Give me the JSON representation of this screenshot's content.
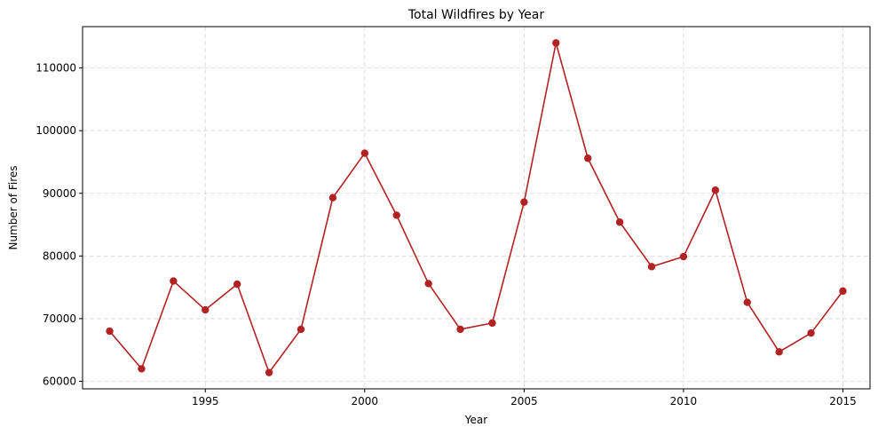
{
  "chart_data": {
    "type": "line",
    "title": "Total Wildfires by Year",
    "xlabel": "Year",
    "ylabel": "Number of Fires",
    "xlim": [
      1991.15,
      2015.85
    ],
    "ylim": [
      58800,
      116600
    ],
    "xticks": [
      1995,
      2000,
      2005,
      2010,
      2015
    ],
    "yticks": [
      60000,
      70000,
      80000,
      90000,
      100000,
      110000
    ],
    "grid": true,
    "legend": "none",
    "series": [
      {
        "x": [
          1992,
          1993,
          1994,
          1995,
          1996,
          1997,
          1998,
          1999,
          2000,
          2001,
          2002,
          2003,
          2004,
          2005,
          2006,
          2007,
          2008,
          2009,
          2010,
          2011,
          2012,
          2013,
          2014,
          2015
        ],
        "values": [
          68000,
          62000,
          76000,
          71400,
          75500,
          61400,
          68300,
          89300,
          96400,
          86500,
          75600,
          68300,
          69300,
          88600,
          114000,
          95600,
          85400,
          78300,
          79900,
          90500,
          72600,
          64700,
          67700,
          74400
        ],
        "color": "#b22222"
      }
    ]
  }
}
